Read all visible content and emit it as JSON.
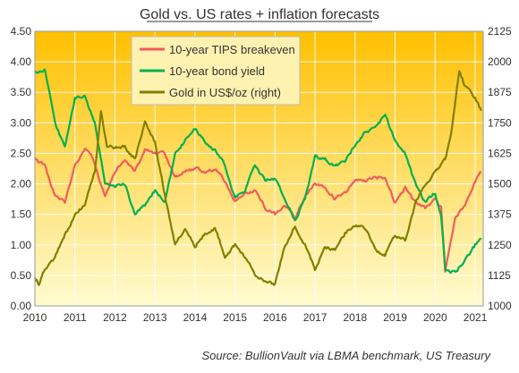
{
  "chart_data": {
    "type": "line",
    "title": "Gold vs. US rates + inflation forecasts",
    "source": "Source: BullionVault via LBMA benchmark, US Treasury",
    "x_ticks": [
      "2010",
      "2011",
      "2012",
      "2013",
      "2014",
      "2015",
      "2016",
      "2017",
      "2018",
      "2019",
      "2020",
      "2021"
    ],
    "xlim": [
      2010.0,
      2021.2
    ],
    "y_left": {
      "lim": [
        0.0,
        4.5
      ],
      "ticks": [
        "0.00",
        "0.50",
        "1.00",
        "1.50",
        "2.00",
        "2.50",
        "3.00",
        "3.50",
        "4.00",
        "4.50"
      ]
    },
    "y_right": {
      "lim": [
        1000,
        2125
      ],
      "ticks": [
        "1000",
        "1125",
        "1250",
        "1375",
        "1500",
        "1625",
        "1750",
        "1875",
        "2000",
        "2125"
      ]
    },
    "background_gradient": {
      "top": "#ffc000",
      "bottom": "#fffbd0"
    },
    "grid": true,
    "legend_position": "top-left-inside",
    "series": [
      {
        "name": "10-year TIPS breakeven",
        "axis": "left",
        "color": "#f25c5c",
        "x": [
          2010.0,
          2010.25,
          2010.5,
          2010.75,
          2011.0,
          2011.25,
          2011.4,
          2011.6,
          2011.75,
          2012.0,
          2012.25,
          2012.5,
          2012.75,
          2013.0,
          2013.25,
          2013.5,
          2013.75,
          2014.0,
          2014.25,
          2014.5,
          2014.75,
          2015.0,
          2015.25,
          2015.5,
          2015.75,
          2016.0,
          2016.25,
          2016.5,
          2016.75,
          2017.0,
          2017.25,
          2017.5,
          2017.75,
          2018.0,
          2018.25,
          2018.5,
          2018.75,
          2019.0,
          2019.25,
          2019.5,
          2019.75,
          2020.0,
          2020.15,
          2020.25,
          2020.5,
          2020.75,
          2021.0,
          2021.15
        ],
        "values": [
          2.4,
          2.3,
          1.8,
          1.7,
          2.3,
          2.6,
          2.5,
          2.1,
          1.8,
          2.2,
          2.4,
          2.2,
          2.55,
          2.5,
          2.5,
          2.1,
          2.2,
          2.25,
          2.2,
          2.25,
          2.05,
          1.7,
          1.85,
          1.9,
          1.6,
          1.5,
          1.65,
          1.45,
          1.8,
          2.0,
          1.95,
          1.75,
          1.85,
          2.05,
          2.05,
          2.1,
          2.1,
          1.7,
          1.95,
          1.7,
          1.6,
          1.75,
          1.6,
          0.55,
          1.45,
          1.65,
          2.05,
          2.2
        ]
      },
      {
        "name": "10-year bond yield",
        "axis": "left",
        "color": "#00b050",
        "x": [
          2010.0,
          2010.25,
          2010.5,
          2010.75,
          2011.0,
          2011.25,
          2011.5,
          2011.75,
          2012.0,
          2012.25,
          2012.5,
          2012.75,
          2013.0,
          2013.25,
          2013.5,
          2013.75,
          2014.0,
          2014.25,
          2014.5,
          2014.75,
          2015.0,
          2015.25,
          2015.5,
          2015.75,
          2016.0,
          2016.25,
          2016.5,
          2016.75,
          2017.0,
          2017.25,
          2017.5,
          2017.75,
          2018.0,
          2018.25,
          2018.5,
          2018.75,
          2019.0,
          2019.25,
          2019.5,
          2019.75,
          2020.0,
          2020.15,
          2020.25,
          2020.5,
          2020.75,
          2021.0,
          2021.15
        ],
        "values": [
          3.8,
          3.85,
          3.0,
          2.6,
          3.4,
          3.45,
          3.0,
          2.0,
          1.95,
          2.0,
          1.5,
          1.65,
          1.9,
          1.7,
          2.5,
          2.7,
          2.9,
          2.7,
          2.55,
          2.3,
          1.75,
          1.9,
          2.3,
          2.05,
          2.1,
          1.75,
          1.4,
          1.75,
          2.45,
          2.4,
          2.3,
          2.35,
          2.65,
          2.85,
          2.9,
          3.15,
          2.7,
          2.5,
          2.0,
          1.7,
          1.85,
          1.5,
          0.6,
          0.55,
          0.75,
          1.0,
          1.1
        ]
      },
      {
        "name": "Gold in US$/oz (right)",
        "axis": "right",
        "color": "#808000",
        "x": [
          2010.0,
          2010.1,
          2010.25,
          2010.5,
          2010.75,
          2011.0,
          2011.25,
          2011.5,
          2011.65,
          2011.8,
          2012.0,
          2012.25,
          2012.5,
          2012.75,
          2013.0,
          2013.25,
          2013.5,
          2013.75,
          2014.0,
          2014.25,
          2014.5,
          2014.75,
          2015.0,
          2015.25,
          2015.5,
          2015.75,
          2016.0,
          2016.25,
          2016.5,
          2016.75,
          2017.0,
          2017.25,
          2017.5,
          2017.75,
          2018.0,
          2018.25,
          2018.5,
          2018.75,
          2019.0,
          2019.25,
          2019.5,
          2019.75,
          2020.0,
          2020.25,
          2020.4,
          2020.6,
          2020.75,
          2021.0,
          2021.15
        ],
        "values": [
          1110,
          1090,
          1150,
          1200,
          1290,
          1370,
          1420,
          1550,
          1800,
          1650,
          1650,
          1650,
          1600,
          1750,
          1670,
          1450,
          1250,
          1320,
          1240,
          1300,
          1320,
          1200,
          1250,
          1200,
          1130,
          1100,
          1090,
          1250,
          1330,
          1250,
          1150,
          1240,
          1230,
          1300,
          1330,
          1320,
          1230,
          1210,
          1290,
          1270,
          1420,
          1500,
          1550,
          1600,
          1710,
          1960,
          1900,
          1850,
          1800
        ]
      }
    ]
  }
}
